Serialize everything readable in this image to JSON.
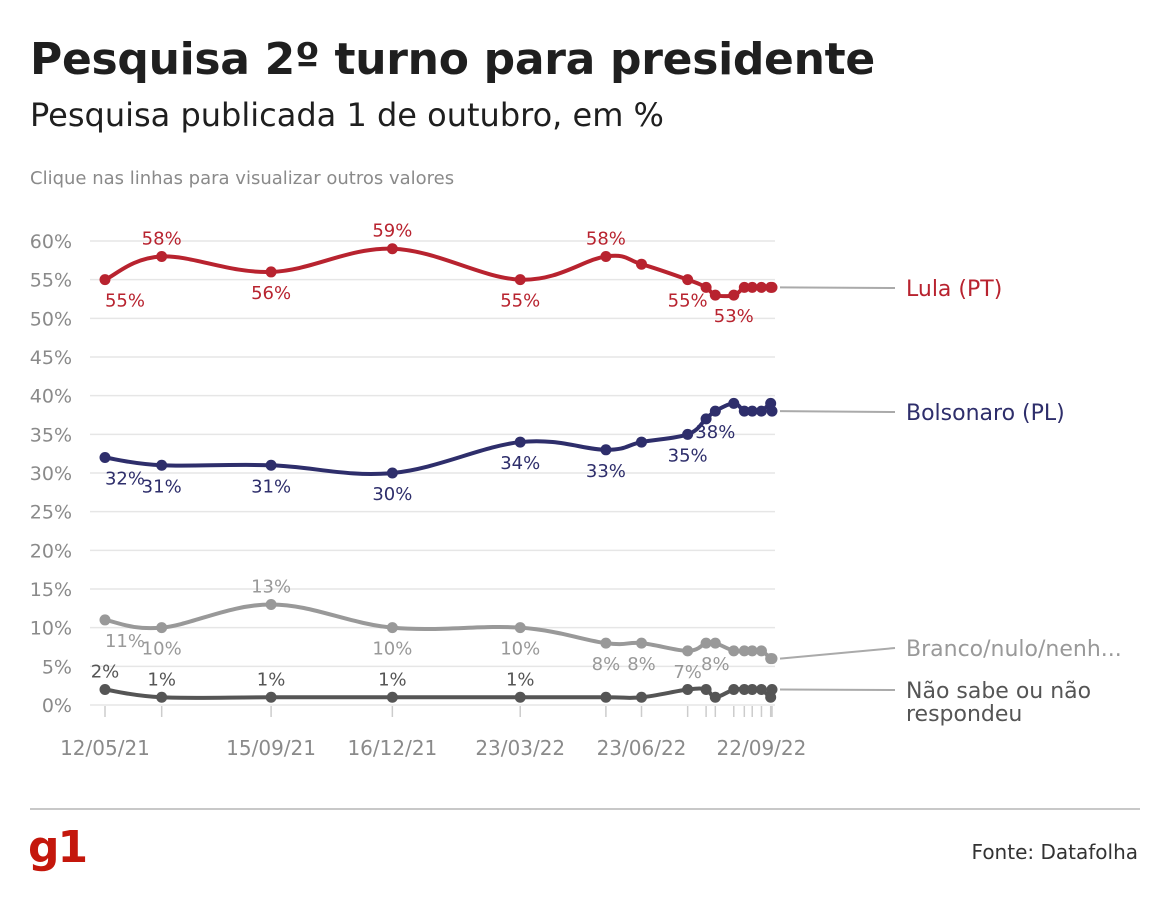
{
  "header": {
    "title": "Pesquisa 2º turno para presidente",
    "subtitle": "Pesquisa publicada 1 de outubro, em %",
    "hint": "Clique nas linhas para visualizar outros valores"
  },
  "footer": {
    "logo": "g1",
    "source": "Fonte: Datafolha"
  },
  "colors": {
    "lula": "#b8232f",
    "bolsonaro": "#2e2e6b",
    "branco": "#999999",
    "nao_sabe": "#555555",
    "grid": "#e6e6e6",
    "axis_text": "#8a8a8a",
    "leader": "#aaaaaa"
  },
  "chart_data": {
    "type": "line",
    "ylim": [
      0,
      60
    ],
    "yticks": [
      "0%",
      "5%",
      "10%",
      "15%",
      "20%",
      "25%",
      "30%",
      "35%",
      "40%",
      "45%",
      "50%",
      "55%",
      "60%"
    ],
    "x_dates": [
      "12/05/21",
      "24/06/21",
      "15/09/21",
      "16/12/21",
      "23/03/22",
      "27/05/22",
      "23/06/22",
      "28/07/22",
      "11/08/22",
      "18/08/22",
      "01/09/22",
      "09/09/22",
      "15/09/22",
      "22/09/22",
      "29/09/22",
      "30/09/22"
    ],
    "x_tick_labels": [
      "12/05/21",
      "15/09/21",
      "16/12/21",
      "23/03/22",
      "23/06/22",
      "22/09/22"
    ],
    "series": [
      {
        "name": "Lula (PT)",
        "color_key": "lula",
        "values": [
          55,
          58,
          56,
          59,
          55,
          58,
          57,
          55,
          54,
          53,
          53,
          54,
          54,
          54,
          54,
          54
        ],
        "point_labels": [
          "55%",
          "58%",
          "56%",
          "59%",
          "55%",
          "58%",
          "",
          "55%",
          "",
          "",
          "53%",
          "",
          "",
          "",
          "",
          ""
        ]
      },
      {
        "name": "Bolsonaro (PL)",
        "color_key": "bolsonaro",
        "values": [
          32,
          31,
          31,
          30,
          34,
          33,
          34,
          35,
          37,
          38,
          39,
          38,
          38,
          38,
          39,
          38
        ],
        "point_labels": [
          "32%",
          "31%",
          "31%",
          "30%",
          "34%",
          "33%",
          "",
          "35%",
          "",
          "38%",
          "",
          "",
          "",
          "",
          "",
          ""
        ]
      },
      {
        "name": "Branco/nulo/nenh...",
        "color_key": "branco",
        "values": [
          11,
          10,
          13,
          10,
          10,
          8,
          8,
          7,
          8,
          8,
          7,
          7,
          7,
          7,
          6,
          6
        ],
        "point_labels": [
          "11%",
          "10%",
          "13%",
          "10%",
          "10%",
          "8%",
          "8%",
          "7%",
          "",
          "8%",
          "",
          "",
          "",
          "",
          "",
          ""
        ]
      },
      {
        "name": "Não sabe ou não respondeu",
        "color_key": "nao_sabe",
        "values": [
          2,
          1,
          1,
          1,
          1,
          1,
          1,
          2,
          2,
          1,
          2,
          2,
          2,
          2,
          1,
          2
        ],
        "point_labels": [
          "2%",
          "1%",
          "1%",
          "1%",
          "1%",
          "",
          "",
          "",
          "",
          "",
          "",
          "",
          "",
          "",
          "",
          ""
        ]
      }
    ],
    "legend": [
      {
        "lines": [
          "Lula (PT)"
        ],
        "color_key": "lula",
        "anchor_value": 54
      },
      {
        "lines": [
          "Bolsonaro (PL)"
        ],
        "color_key": "bolsonaro",
        "anchor_value": 38
      },
      {
        "lines": [
          "Branco/nulo/nenh..."
        ],
        "color_key": "branco",
        "anchor_value": 6
      },
      {
        "lines": [
          "Não sabe ou não",
          "respondeu"
        ],
        "color_key": "nao_sabe",
        "anchor_value": 2
      }
    ]
  }
}
